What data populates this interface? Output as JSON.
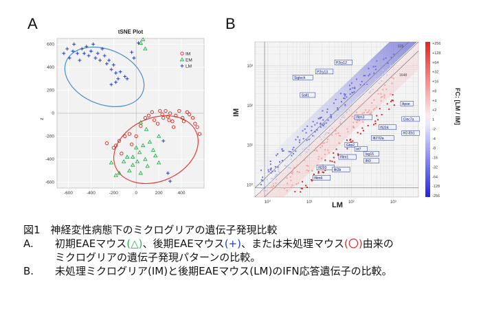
{
  "panels": {
    "a_letter": "A",
    "b_letter": "B"
  },
  "chart_data": [
    {
      "type": "scatter",
      "title": "tSNE Plot",
      "xlabel": "",
      "ylabel": "",
      "xlim": [
        -700,
        600
      ],
      "ylim": [
        -650,
        650
      ],
      "xticks": [
        "-600",
        "-400",
        "-200",
        "0",
        "200",
        "400"
      ],
      "yticks": [
        "600",
        "400",
        "200",
        "0",
        "-200",
        "-400",
        "-600"
      ],
      "ylabel_small": "z",
      "grid": true,
      "legend_position": "top-right",
      "series": [
        {
          "name": "IM",
          "marker": "circle",
          "color": "#e0201a",
          "points": [
            [
              40,
              -110
            ],
            [
              80,
              -40
            ],
            [
              110,
              -20
            ],
            [
              140,
              10
            ],
            [
              160,
              -60
            ],
            [
              190,
              -90
            ],
            [
              210,
              20
            ],
            [
              230,
              -10
            ],
            [
              240,
              -40
            ],
            [
              260,
              20
            ],
            [
              280,
              -30
            ],
            [
              290,
              -60
            ],
            [
              300,
              0
            ],
            [
              320,
              -70
            ],
            [
              330,
              -120
            ],
            [
              350,
              -20
            ],
            [
              380,
              20
            ],
            [
              410,
              -40
            ],
            [
              450,
              10
            ],
            [
              470,
              -10
            ],
            [
              500,
              -40
            ],
            [
              520,
              -90
            ],
            [
              540,
              -120
            ],
            [
              -60,
              -180
            ],
            [
              -100,
              -200
            ],
            [
              -150,
              -240
            ],
            [
              -180,
              -280
            ],
            [
              -200,
              -300
            ],
            [
              -130,
              -350
            ],
            [
              0,
              -200
            ],
            [
              -40,
              -270
            ],
            [
              -260,
              -260
            ],
            [
              420,
              -70
            ],
            [
              560,
              -180
            ]
          ]
        },
        {
          "name": "EM",
          "marker": "triangle",
          "color": "#22b14c",
          "points": [
            [
              -30,
              -450
            ],
            [
              -60,
              -500
            ],
            [
              -80,
              -380
            ],
            [
              -110,
              -420
            ],
            [
              -150,
              -520
            ],
            [
              0,
              -300
            ],
            [
              30,
              -340
            ],
            [
              60,
              -280
            ],
            [
              80,
              -400
            ],
            [
              100,
              -460
            ],
            [
              120,
              -250
            ],
            [
              150,
              -320
            ],
            [
              170,
              -370
            ],
            [
              200,
              -430
            ],
            [
              40,
              -520
            ],
            [
              -180,
              -540
            ],
            [
              -220,
              -430
            ],
            [
              -30,
              -380
            ],
            [
              10,
              -420
            ],
            [
              200,
              -200
            ],
            [
              90,
              -140
            ],
            [
              40,
              -80
            ],
            [
              60,
              640
            ],
            [
              80,
              560
            ],
            [
              40,
              610
            ]
          ]
        },
        {
          "name": "LM",
          "marker": "plus",
          "color": "#1f3bd1",
          "points": [
            [
              -640,
              520
            ],
            [
              -610,
              560
            ],
            [
              -590,
              480
            ],
            [
              -560,
              540
            ],
            [
              -550,
              600
            ],
            [
              -520,
              520
            ],
            [
              -500,
              460
            ],
            [
              -480,
              560
            ],
            [
              -460,
              520
            ],
            [
              -440,
              580
            ],
            [
              -420,
              500
            ],
            [
              -400,
              540
            ],
            [
              -380,
              600
            ],
            [
              -360,
              480
            ],
            [
              -340,
              520
            ],
            [
              -320,
              460
            ],
            [
              -300,
              560
            ],
            [
              -280,
              500
            ],
            [
              -260,
              430
            ],
            [
              -240,
              460
            ],
            [
              -220,
              380
            ],
            [
              -200,
              420
            ],
            [
              -180,
              350
            ],
            [
              -160,
              300
            ],
            [
              -140,
              360
            ],
            [
              -220,
              250
            ],
            [
              -180,
              270
            ],
            [
              -100,
              320
            ],
            [
              -80,
              300
            ],
            [
              -40,
              530
            ],
            [
              -20,
              480
            ],
            [
              20,
              610
            ],
            [
              240,
              -240
            ],
            [
              280,
              -520
            ],
            [
              300,
              -590
            ]
          ]
        }
      ]
    },
    {
      "type": "scatter",
      "title": "",
      "xlabel": "LM",
      "ylabel": "IM",
      "scale": "log",
      "xlim": [
        0.5,
        4000
      ],
      "ylim": [
        0.5,
        4000
      ],
      "xticks": [
        "10⁰",
        "10¹",
        "10²",
        "10³"
      ],
      "yticks": [
        "10³",
        "10²",
        "10¹",
        "10⁰"
      ],
      "diagonal_labels": [
        "015",
        "1648"
      ],
      "colorbar": {
        "label": "FC: [LM / IM]",
        "ticks": [
          "+256",
          "+128",
          "+64",
          "+32",
          "+16",
          "+8",
          "+4",
          "+2",
          "1",
          "-2",
          "-4",
          "-8",
          "-16",
          "-32",
          "-64",
          "-128",
          "-256"
        ]
      },
      "gene_labels": [
        {
          "name": "P2ry12",
          "x": 40,
          "y": 1200
        },
        {
          "name": "P2ry13",
          "x": 14,
          "y": 700
        },
        {
          "name": "Siglech",
          "x": 4,
          "y": 500
        },
        {
          "name": "Sall1",
          "x": 6,
          "y": 180
        },
        {
          "name": "Apoe",
          "x": 1500,
          "y": 110
        },
        {
          "name": "Ifitm3",
          "x": 120,
          "y": 50
        },
        {
          "name": "Clec7a",
          "x": 1600,
          "y": 45
        },
        {
          "name": "Ifi204",
          "x": 450,
          "y": 28
        },
        {
          "name": "H2-Eb1",
          "x": 1600,
          "y": 20
        },
        {
          "name": "Ifi27l2a",
          "x": 300,
          "y": 15
        },
        {
          "name": "Gbp2",
          "x": 70,
          "y": 10
        },
        {
          "name": "Irf7",
          "x": 120,
          "y": 8
        },
        {
          "name": "Isg15",
          "x": 200,
          "y": 6
        },
        {
          "name": "Ifit3",
          "x": 200,
          "y": 4
        },
        {
          "name": "Ifitm1",
          "x": 50,
          "y": 5
        },
        {
          "name": "Ifi203",
          "x": 15,
          "y": 2.7
        },
        {
          "name": "Ifit3b",
          "x": 35,
          "y": 2.4
        },
        {
          "name": "Ifitm6",
          "x": 12,
          "y": 1.5
        }
      ]
    }
  ],
  "caption": {
    "fig_title": "図1　神経変性病態下のミクログリアの遺伝子発現比較",
    "a_label": "A.",
    "a_line1_part1": "初期EAEマウス",
    "a_sym1": "(△)",
    "a_line1_part2": "、後期EAEマウス",
    "a_sym2": "(+)",
    "a_line1_part3": "、または未処理マウス",
    "a_sym3": "(〇)",
    "a_line1_part4": "由来の",
    "a_line2": "ミクログリアの遺伝子発現パターンの比較。",
    "b_label": "B.",
    "b_text": "未処理ミクログリア(IM)と後期EAEマウス(LM)のIFN応答遺伝子の比較。"
  }
}
